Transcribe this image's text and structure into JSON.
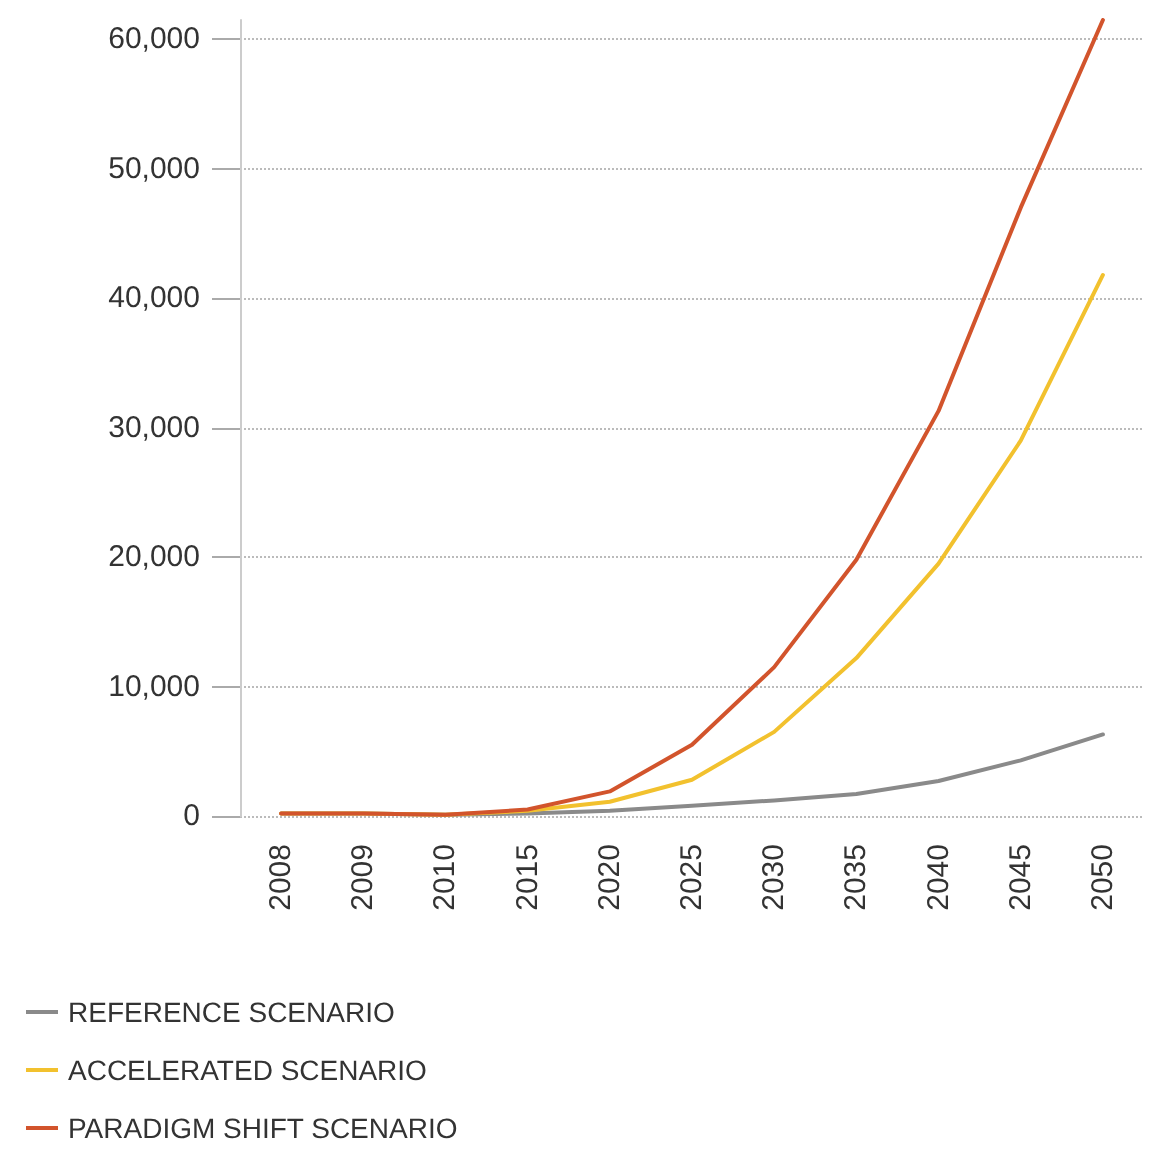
{
  "chart_data": {
    "type": "line",
    "categories": [
      "2008",
      "2009",
      "2010",
      "2015",
      "2020",
      "2025",
      "2030",
      "2035",
      "2040",
      "2045",
      "2050"
    ],
    "series": [
      {
        "name": "REFERENCE SCENARIO",
        "color": "#8a8a8a",
        "values": [
          200,
          200,
          100,
          200,
          400,
          800,
          1200,
          1700,
          2700,
          4300,
          6300
        ]
      },
      {
        "name": "ACCELERATED SCENARIO",
        "color": "#f2c12e",
        "values": [
          200,
          200,
          100,
          400,
          1100,
          2800,
          6500,
          12200,
          19500,
          29000,
          41800
        ]
      },
      {
        "name": "PARADIGM SHIFT SCENARIO",
        "color": "#d2542c",
        "values": [
          200,
          200,
          100,
          500,
          1900,
          5500,
          11500,
          19800,
          31300,
          47000,
          61500
        ]
      }
    ],
    "ylim": [
      0,
      61500
    ],
    "yticks": [
      {
        "value": 0,
        "label": "0"
      },
      {
        "value": 10000,
        "label": "10,000"
      },
      {
        "value": 20000,
        "label": "20,000"
      },
      {
        "value": 30000,
        "label": "30,000"
      },
      {
        "value": 40000,
        "label": "40,000"
      },
      {
        "value": 50000,
        "label": "50,000"
      },
      {
        "value": 60000,
        "label": "60,000"
      }
    ],
    "grid": "y",
    "legend": "bottom left",
    "marker": "none",
    "line_style": "solid"
  }
}
